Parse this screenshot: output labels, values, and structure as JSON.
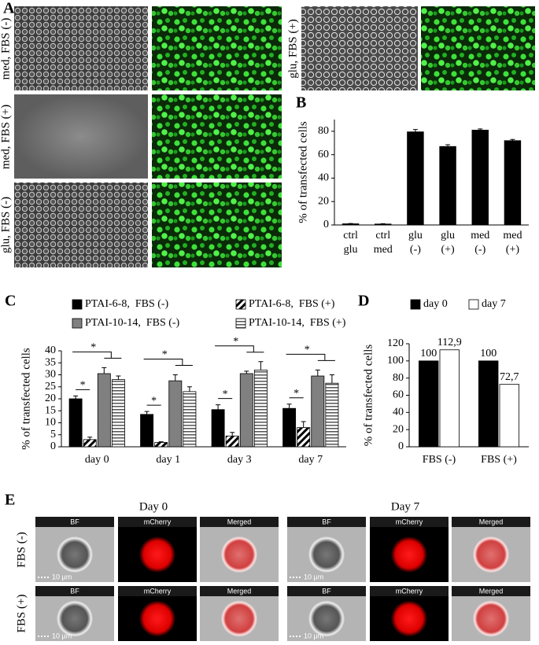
{
  "panel_labels": [
    "A",
    "B",
    "C",
    "D",
    "E"
  ],
  "panel_a": {
    "image_labels": [
      "med, FBS (-)",
      "med, FBS (+)",
      "glu, FBS (-)",
      "glu, FBS (+)"
    ]
  },
  "chart_data": [
    {
      "type": "bar",
      "y_label": "% of transfected cells",
      "categories": [
        [
          "ctrl",
          "glu"
        ],
        [
          "ctrl",
          "med"
        ],
        [
          "glu",
          "(-)"
        ],
        [
          "glu",
          "(+)"
        ],
        [
          "med",
          "(-)"
        ],
        [
          "med",
          "(+)"
        ]
      ],
      "values": [
        1,
        0.8,
        79.5,
        67,
        81,
        72
      ],
      "errors": [
        0.3,
        0.3,
        2,
        1.5,
        1,
        1
      ],
      "color": "#000000",
      "ylim": [
        0,
        90
      ],
      "yticks": [
        0,
        20,
        40,
        60,
        80
      ]
    },
    {
      "type": "bar",
      "y_label": "% of transfected cells",
      "annotation": "*",
      "categories": [
        "day 0",
        "day 1",
        "day 3",
        "day 7"
      ],
      "series": [
        {
          "name": "PTAI-6-8,  FBS (-)",
          "color": "#000000",
          "values": [
            20,
            13.5,
            15.5,
            16
          ],
          "errors": [
            1.2,
            1.2,
            2,
            1.8
          ]
        },
        {
          "name": "PTAI-6-8,  FBS (+)",
          "color": "#000000",
          "pattern": "diagonal",
          "values": [
            3,
            1.8,
            4.5,
            8
          ],
          "errors": [
            1,
            0.3,
            1.5,
            2.5
          ]
        },
        {
          "name": "PTAI-10-14,  FBS (-)",
          "color": "#808080",
          "values": [
            30.5,
            27.5,
            30.5,
            29.5
          ],
          "errors": [
            2.5,
            2.5,
            1,
            2.5
          ]
        },
        {
          "name": "PTAI-10-14,  FBS (+)",
          "color": "#000000",
          "pattern": "horizontal",
          "values": [
            28,
            23,
            32,
            26.5
          ],
          "errors": [
            1.5,
            2,
            3.5,
            3.5
          ]
        }
      ],
      "ylim": [
        0,
        40
      ],
      "yticks": [
        0,
        5,
        10,
        15,
        20,
        25,
        30,
        35,
        40
      ]
    },
    {
      "type": "bar",
      "y_label": "% of transfected cells",
      "categories": [
        "FBS (-)",
        "FBS (+)"
      ],
      "series": [
        {
          "name": "day 0",
          "color": "#000000",
          "values": [
            100,
            100
          ],
          "value_labels": [
            "100",
            "100"
          ]
        },
        {
          "name": "day 7",
          "color": "#ffffff",
          "values": [
            112.9,
            72.7
          ],
          "value_labels": [
            "112,9",
            "72,7"
          ]
        }
      ],
      "ylim": [
        0,
        120
      ],
      "yticks": [
        0,
        20,
        40,
        60,
        80,
        100,
        120
      ]
    }
  ],
  "panel_e": {
    "columns": [
      "Day 0",
      "Day 7"
    ],
    "rows": [
      "FBS (-)",
      "FBS (+)"
    ],
    "channels": [
      "BF",
      "mCherry",
      "Merged"
    ],
    "scale_bar": "10 μm"
  }
}
